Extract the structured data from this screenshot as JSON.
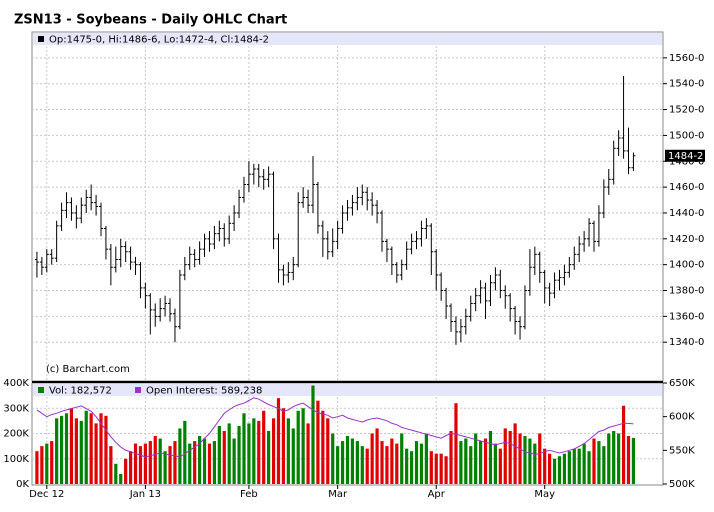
{
  "chart_data": {
    "type": "ohlc",
    "title": "ZSN13 - Soybeans - Daily OHLC Chart",
    "info": "Op:1475-0, Hi:1486-6, Lo:1472-4, Cl:1484-2",
    "credit": "(c) Barchart.com",
    "last": {
      "value": 1484.25,
      "label": "1484-2"
    },
    "color": "#000000",
    "grid": true,
    "open": [
      1404,
      1402,
      1398,
      1408,
      1405,
      1430,
      1442,
      1448,
      1440,
      1436,
      1446,
      1452,
      1448,
      1445,
      1428,
      1412,
      1398,
      1404,
      1414,
      1410,
      1402,
      1400,
      1382,
      1376,
      1365,
      1360,
      1366,
      1370,
      1362,
      1352,
      1392,
      1400,
      1408,
      1404,
      1412,
      1420,
      1416,
      1424,
      1428,
      1420,
      1432,
      1440,
      1452,
      1462,
      1470,
      1474,
      1468,
      1466,
      1470,
      1420,
      1396,
      1392,
      1394,
      1400,
      1448,
      1452,
      1446,
      1462,
      1430,
      1420,
      1410,
      1418,
      1428,
      1440,
      1444,
      1448,
      1452,
      1456,
      1450,
      1446,
      1440,
      1418,
      1412,
      1400,
      1392,
      1400,
      1412,
      1418,
      1420,
      1428,
      1430,
      1410,
      1392,
      1380,
      1368,
      1356,
      1348,
      1352,
      1360,
      1370,
      1376,
      1382,
      1372,
      1386,
      1392,
      1380,
      1376,
      1366,
      1356,
      1352,
      1380,
      1398,
      1408,
      1394,
      1382,
      1378,
      1388,
      1390,
      1394,
      1400,
      1408,
      1416,
      1420,
      1432,
      1418,
      1440,
      1460,
      1466,
      1490,
      1498,
      1488,
      1475
    ],
    "high": [
      1410,
      1406,
      1412,
      1412,
      1434,
      1448,
      1456,
      1452,
      1446,
      1452,
      1458,
      1462,
      1454,
      1448,
      1430,
      1416,
      1414,
      1420,
      1418,
      1414,
      1406,
      1402,
      1386,
      1378,
      1370,
      1374,
      1376,
      1374,
      1366,
      1396,
      1406,
      1414,
      1412,
      1418,
      1424,
      1426,
      1430,
      1434,
      1432,
      1438,
      1446,
      1458,
      1468,
      1480,
      1478,
      1478,
      1474,
      1476,
      1472,
      1424,
      1400,
      1402,
      1406,
      1456,
      1460,
      1458,
      1484,
      1464,
      1434,
      1426,
      1428,
      1434,
      1446,
      1450,
      1454,
      1460,
      1462,
      1460,
      1456,
      1450,
      1442,
      1420,
      1414,
      1402,
      1404,
      1418,
      1424,
      1426,
      1434,
      1436,
      1432,
      1412,
      1394,
      1382,
      1370,
      1360,
      1358,
      1366,
      1376,
      1382,
      1388,
      1386,
      1392,
      1398,
      1396,
      1384,
      1378,
      1368,
      1360,
      1384,
      1412,
      1414,
      1410,
      1396,
      1386,
      1394,
      1396,
      1400,
      1406,
      1414,
      1422,
      1426,
      1436,
      1434,
      1446,
      1466,
      1474,
      1496,
      1504,
      1546,
      1506,
      1486.75
    ],
    "low": [
      1390,
      1392,
      1394,
      1400,
      1402,
      1426,
      1436,
      1434,
      1428,
      1432,
      1440,
      1442,
      1438,
      1422,
      1404,
      1384,
      1394,
      1398,
      1402,
      1396,
      1392,
      1374,
      1366,
      1346,
      1352,
      1356,
      1360,
      1356,
      1340,
      1350,
      1388,
      1396,
      1398,
      1400,
      1406,
      1410,
      1412,
      1418,
      1414,
      1416,
      1426,
      1436,
      1448,
      1456,
      1462,
      1460,
      1458,
      1460,
      1412,
      1386,
      1384,
      1386,
      1388,
      1398,
      1444,
      1440,
      1440,
      1424,
      1406,
      1404,
      1406,
      1412,
      1424,
      1434,
      1438,
      1442,
      1446,
      1442,
      1438,
      1432,
      1410,
      1402,
      1392,
      1386,
      1388,
      1396,
      1408,
      1412,
      1414,
      1420,
      1392,
      1380,
      1372,
      1358,
      1348,
      1338,
      1340,
      1346,
      1356,
      1364,
      1370,
      1358,
      1368,
      1380,
      1374,
      1366,
      1356,
      1346,
      1342,
      1350,
      1376,
      1392,
      1386,
      1370,
      1368,
      1374,
      1380,
      1384,
      1390,
      1396,
      1402,
      1410,
      1414,
      1410,
      1414,
      1436,
      1454,
      1462,
      1484,
      1482,
      1470,
      1472.5
    ],
    "close": [
      1402,
      1398,
      1408,
      1405,
      1430,
      1442,
      1448,
      1440,
      1436,
      1446,
      1452,
      1448,
      1445,
      1428,
      1412,
      1398,
      1404,
      1414,
      1410,
      1402,
      1400,
      1382,
      1376,
      1365,
      1360,
      1366,
      1370,
      1362,
      1352,
      1392,
      1400,
      1408,
      1404,
      1412,
      1420,
      1416,
      1424,
      1428,
      1420,
      1432,
      1440,
      1452,
      1462,
      1470,
      1474,
      1468,
      1466,
      1470,
      1420,
      1396,
      1392,
      1394,
      1400,
      1448,
      1452,
      1446,
      1462,
      1430,
      1420,
      1410,
      1418,
      1428,
      1440,
      1444,
      1448,
      1452,
      1456,
      1450,
      1446,
      1440,
      1418,
      1412,
      1400,
      1392,
      1400,
      1412,
      1418,
      1420,
      1428,
      1430,
      1410,
      1392,
      1380,
      1368,
      1356,
      1348,
      1352,
      1360,
      1370,
      1376,
      1382,
      1372,
      1386,
      1392,
      1380,
      1376,
      1366,
      1356,
      1352,
      1380,
      1398,
      1408,
      1394,
      1382,
      1378,
      1388,
      1390,
      1394,
      1400,
      1408,
      1416,
      1420,
      1432,
      1418,
      1440,
      1460,
      1466,
      1490,
      1498,
      1488,
      1475,
      1484.25
    ],
    "xlim": [
      -1,
      127
    ],
    "xticks": [
      {
        "value": 2,
        "label": "Dec 12"
      },
      {
        "value": 22,
        "label": "Jan 13"
      },
      {
        "value": 43,
        "label": "Feb"
      },
      {
        "value": 61,
        "label": "Mar"
      },
      {
        "value": 81,
        "label": "Apr"
      },
      {
        "value": 103,
        "label": "May"
      }
    ],
    "ylim": [
      1310,
      1580
    ],
    "yticks": [
      {
        "value": 1340,
        "label": "1340-0"
      },
      {
        "value": 1360,
        "label": "1360-0"
      },
      {
        "value": 1380,
        "label": "1380-0"
      },
      {
        "value": 1400,
        "label": "1400-0"
      },
      {
        "value": 1420,
        "label": "1420-0"
      },
      {
        "value": 1440,
        "label": "1440-0"
      },
      {
        "value": 1460,
        "label": "1460-0"
      },
      {
        "value": 1480,
        "label": "1480-0"
      },
      {
        "value": 1500,
        "label": "1500-0"
      },
      {
        "value": 1520,
        "label": "1520-0"
      },
      {
        "value": 1540,
        "label": "1540-0"
      },
      {
        "value": 1560,
        "label": "1560-0"
      }
    ],
    "volume": {
      "name": "Vol: 182,572",
      "up_color": "#008000",
      "down_color": "#e00000",
      "values": [
        130000,
        150000,
        160000,
        170000,
        260000,
        270000,
        280000,
        300000,
        260000,
        250000,
        290000,
        280000,
        240000,
        280000,
        270000,
        150000,
        80000,
        40000,
        100000,
        130000,
        160000,
        150000,
        160000,
        170000,
        190000,
        180000,
        130000,
        150000,
        170000,
        220000,
        250000,
        160000,
        170000,
        190000,
        180000,
        160000,
        170000,
        230000,
        210000,
        240000,
        180000,
        230000,
        280000,
        240000,
        260000,
        250000,
        290000,
        210000,
        260000,
        340000,
        300000,
        260000,
        220000,
        290000,
        300000,
        240000,
        390000,
        330000,
        290000,
        260000,
        200000,
        150000,
        170000,
        190000,
        180000,
        170000,
        150000,
        140000,
        200000,
        220000,
        170000,
        150000,
        180000,
        160000,
        200000,
        140000,
        130000,
        170000,
        160000,
        200000,
        130000,
        120000,
        120000,
        110000,
        210000,
        320000,
        170000,
        180000,
        150000,
        200000,
        170000,
        180000,
        210000,
        160000,
        140000,
        220000,
        210000,
        240000,
        200000,
        190000,
        180000,
        160000,
        200000,
        140000,
        120000,
        100000,
        110000,
        120000,
        130000,
        140000,
        140000,
        160000,
        130000,
        180000,
        170000,
        150000,
        200000,
        210000,
        200000,
        310000,
        190000,
        182572
      ],
      "ylim": [
        0,
        400000
      ],
      "yticks": [
        {
          "value": 0,
          "label": "0K"
        },
        {
          "value": 100000,
          "label": "100K"
        },
        {
          "value": 200000,
          "label": "200K"
        },
        {
          "value": 300000,
          "label": "300K"
        },
        {
          "value": 400000,
          "label": "400K"
        }
      ]
    },
    "open_interest": {
      "name": "Open Interest: 589,238",
      "color": "#9933cc",
      "values": [
        610000,
        605000,
        600000,
        603000,
        605000,
        608000,
        610000,
        612000,
        614000,
        616000,
        612000,
        608000,
        600000,
        590000,
        580000,
        570000,
        562000,
        555000,
        550000,
        548000,
        545000,
        543000,
        540000,
        542000,
        544000,
        546000,
        545000,
        543000,
        542000,
        540000,
        545000,
        550000,
        555000,
        560000,
        568000,
        575000,
        585000,
        595000,
        605000,
        610000,
        615000,
        618000,
        620000,
        624000,
        628000,
        626000,
        622000,
        618000,
        615000,
        612000,
        608000,
        610000,
        615000,
        618000,
        620000,
        615000,
        610000,
        606000,
        604000,
        602000,
        598000,
        600000,
        602000,
        598000,
        596000,
        594000,
        592000,
        595000,
        597000,
        598000,
        596000,
        594000,
        590000,
        588000,
        584000,
        582000,
        580000,
        578000,
        576000,
        574000,
        572000,
        570000,
        568000,
        572000,
        575000,
        574000,
        572000,
        570000,
        568000,
        566000,
        564000,
        562000,
        560000,
        558000,
        560000,
        562000,
        560000,
        556000,
        552000,
        548000,
        546000,
        544000,
        545000,
        548000,
        550000,
        548000,
        546000,
        548000,
        550000,
        552000,
        556000,
        560000,
        566000,
        572000,
        578000,
        580000,
        584000,
        586000,
        588000,
        590000,
        590000,
        589238
      ],
      "ylim": [
        500000,
        650000
      ],
      "yticks": [
        {
          "value": 500000,
          "label": "500K"
        },
        {
          "value": 550000,
          "label": "550K"
        },
        {
          "value": 600000,
          "label": "600K"
        },
        {
          "value": 650000,
          "label": "650K"
        }
      ]
    }
  }
}
